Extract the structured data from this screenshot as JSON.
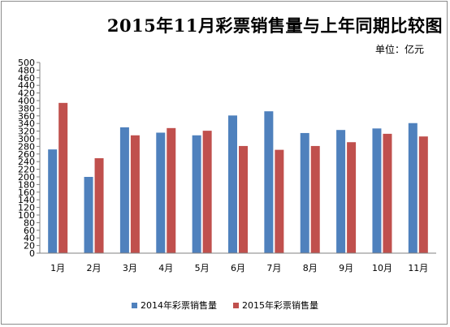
{
  "title": "2015年11月彩票销售量与上年同期比较图",
  "unit": "单位：亿元",
  "chart_data": {
    "type": "bar",
    "categories": [
      "1月",
      "2月",
      "3月",
      "4月",
      "5月",
      "6月",
      "7月",
      "8月",
      "9月",
      "10月",
      "11月"
    ],
    "series": [
      {
        "name": "2014年彩票销售量",
        "color": "#4f81bd",
        "values": [
          272,
          200,
          330,
          316,
          309,
          361,
          372,
          315,
          323,
          327,
          341
        ]
      },
      {
        "name": "2015年彩票销售量",
        "color": "#c0504d",
        "values": [
          394,
          249,
          309,
          328,
          321,
          281,
          271,
          281,
          291,
          313,
          306
        ]
      }
    ],
    "yticks": [
      0,
      20,
      40,
      60,
      80,
      100,
      120,
      140,
      160,
      180,
      200,
      220,
      240,
      260,
      280,
      300,
      320,
      340,
      360,
      380,
      400,
      420,
      440,
      460,
      480,
      500
    ],
    "ylim": [
      0,
      500
    ],
    "grid": false,
    "legend_position": "bottom"
  }
}
